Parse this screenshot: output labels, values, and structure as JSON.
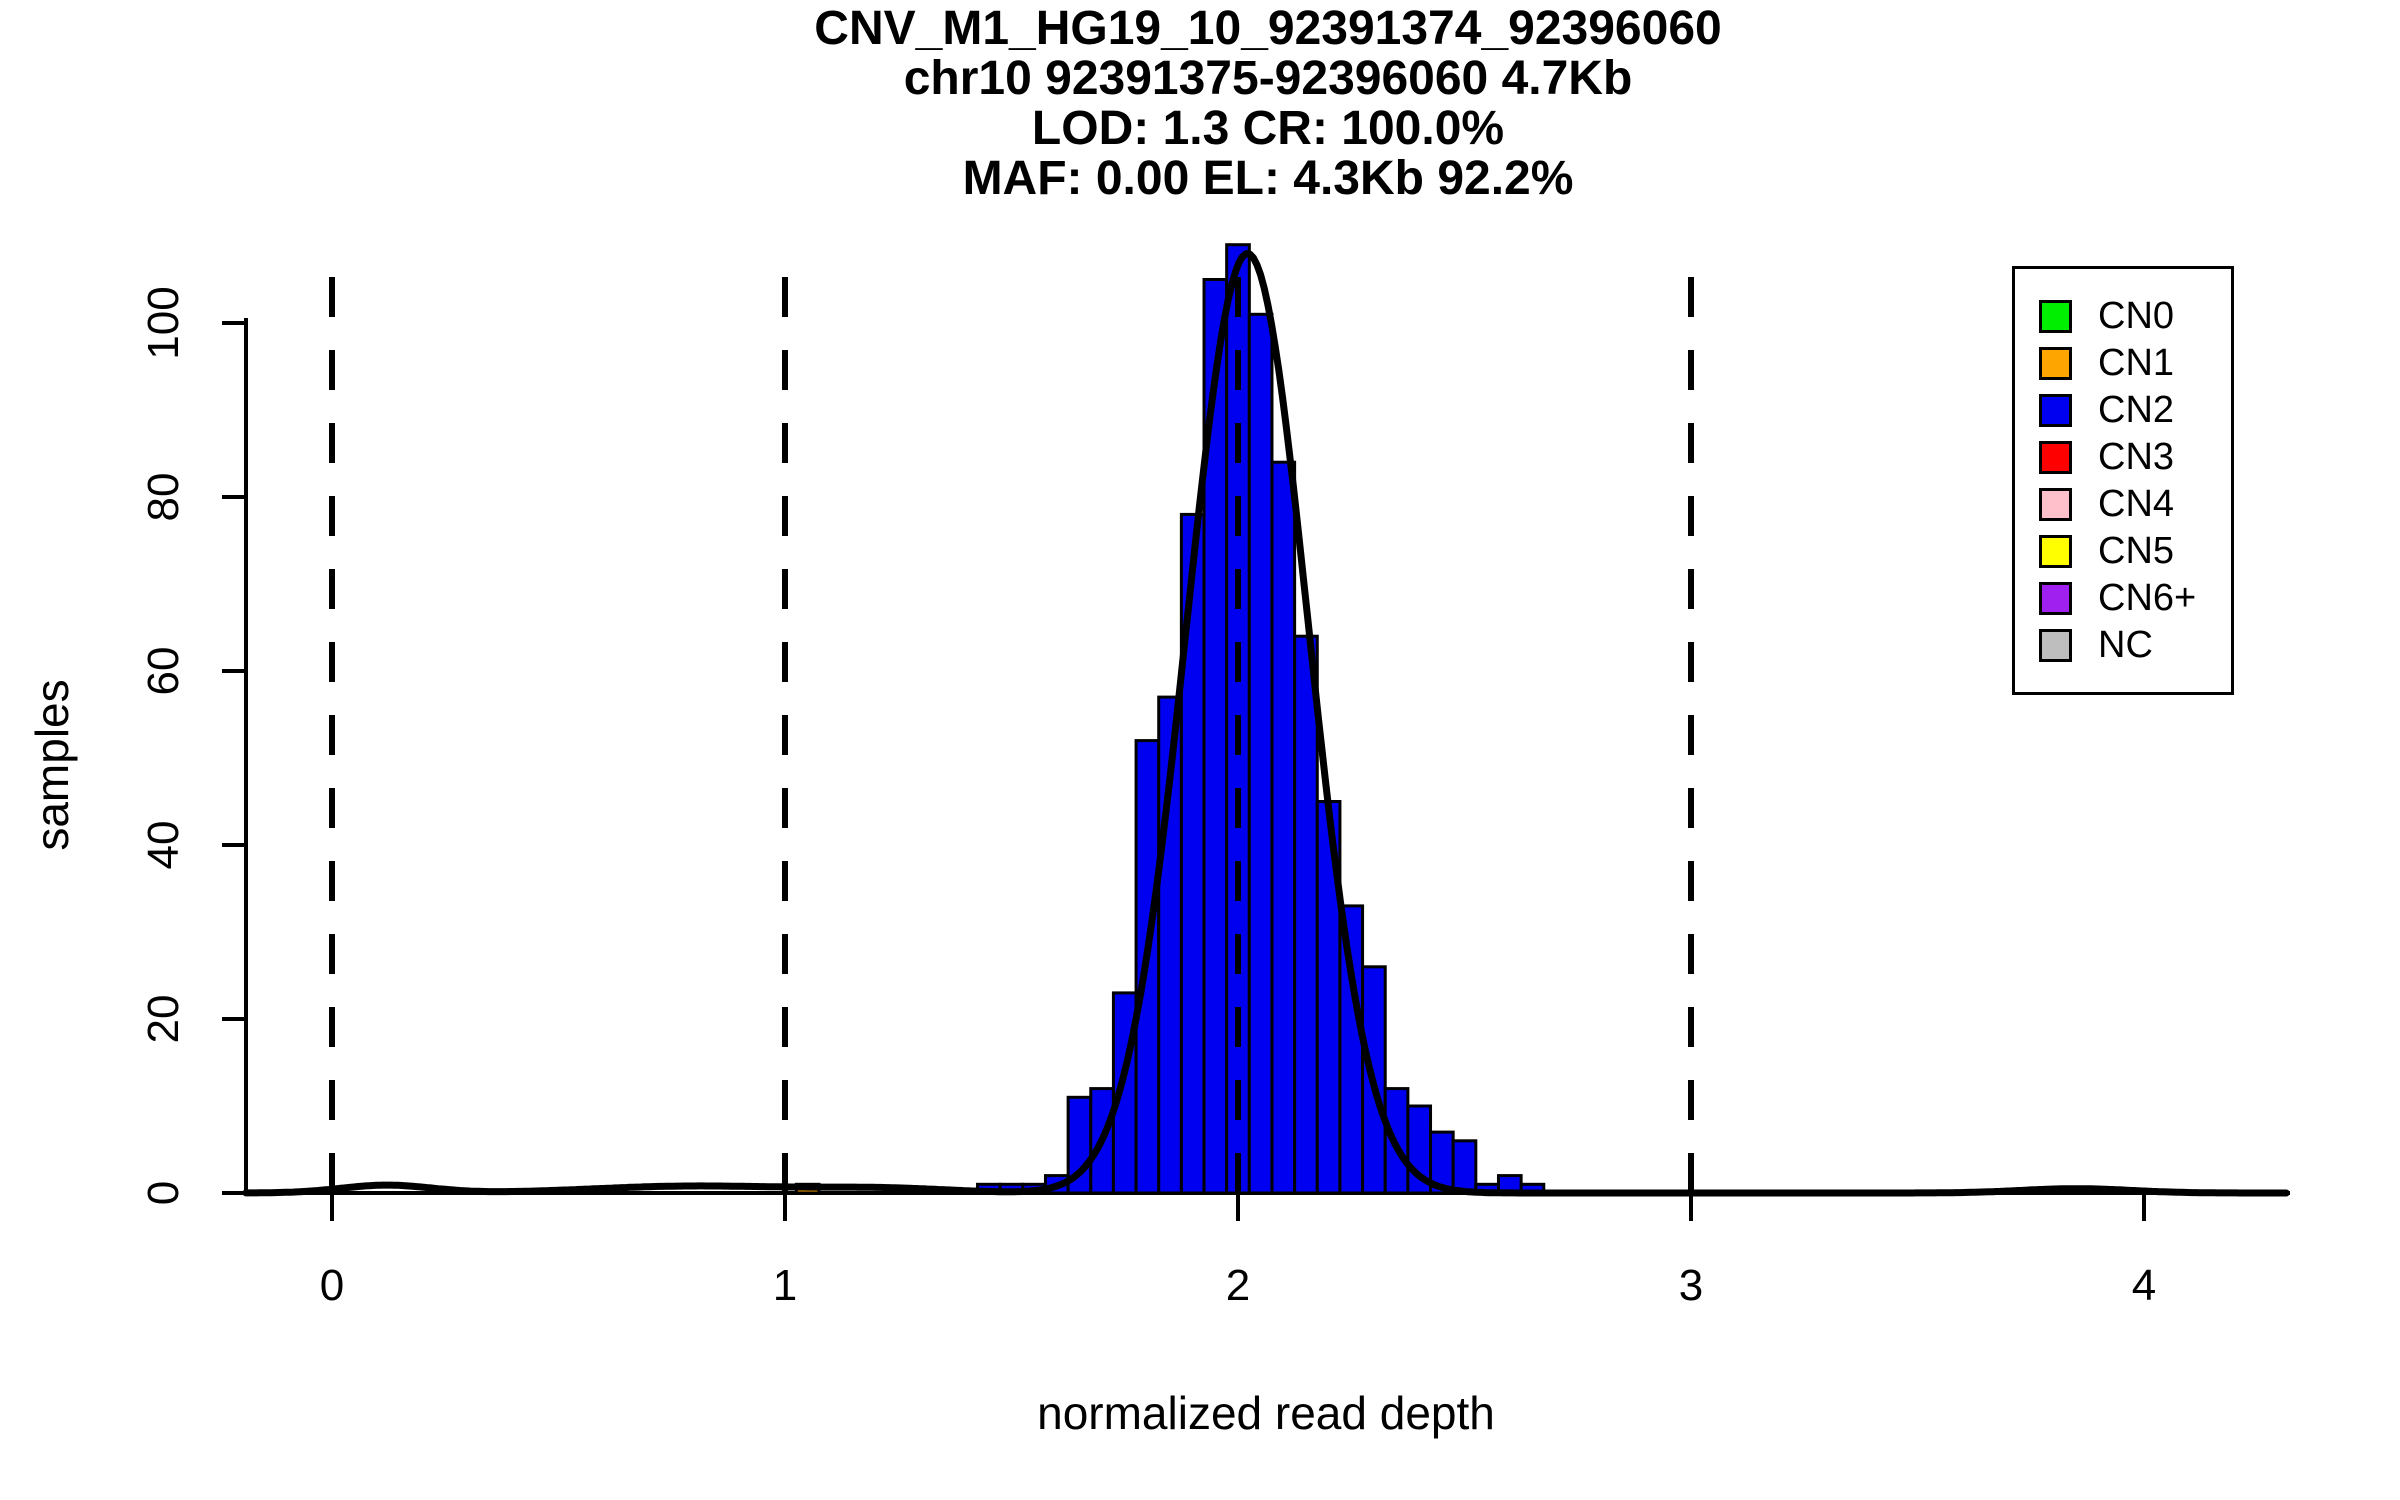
{
  "chart_data": {
    "type": "histogram",
    "title_lines": [
      "CNV_M1_HG19_10_92391374_92396060",
      "chr10 92391375-92396060 4.7Kb",
      "LOD: 1.3 CR: 100.0%",
      "MAF: 0.00 EL: 4.3Kb 92.2%"
    ],
    "xlabel": "normalized read depth",
    "ylabel": "samples",
    "xlim": [
      -0.19,
      4.32
    ],
    "ylim": [
      0,
      109
    ],
    "x_ticks": [
      0,
      1,
      2,
      3,
      4
    ],
    "y_ticks": [
      0,
      20,
      40,
      60,
      80,
      100
    ],
    "dashed_vlines_x": [
      0,
      1,
      2,
      3
    ],
    "grid": false,
    "legend_position": "top-right",
    "histogram": {
      "bin_width": 0.05,
      "series": [
        {
          "name": "CN2",
          "color": "#0000F0",
          "bin_start": 1.425,
          "counts": [
            1,
            1,
            1,
            2,
            11,
            12,
            23,
            52,
            57,
            78,
            105,
            109,
            101,
            84,
            64,
            45,
            33,
            26,
            12,
            10,
            7,
            6,
            1,
            2,
            1
          ]
        },
        {
          "name": "CN1",
          "color": "#FFA500",
          "bins": [
            {
              "start": 1.025,
              "count": 1
            }
          ]
        }
      ]
    },
    "density_curve": {
      "color": "#000000",
      "components": [
        {
          "mu": 2.021,
          "sigma": 0.134,
          "amp": 108
        },
        {
          "mu": 0.12,
          "sigma": 0.1,
          "amp": 0.9
        },
        {
          "mu": 0.8,
          "sigma": 0.22,
          "amp": 0.8
        },
        {
          "mu": 1.22,
          "sigma": 0.15,
          "amp": 0.5
        },
        {
          "mu": 3.85,
          "sigma": 0.12,
          "amp": 0.5
        }
      ]
    },
    "legend": {
      "items": [
        {
          "label": "CN0",
          "color": "#00EE00"
        },
        {
          "label": "CN1",
          "color": "#FFA500"
        },
        {
          "label": "CN2",
          "color": "#0000F0"
        },
        {
          "label": "CN3",
          "color": "#FF0000"
        },
        {
          "label": "CN4",
          "color": "#FFC0CB"
        },
        {
          "label": "CN5",
          "color": "#FFFF00"
        },
        {
          "label": "CN6+",
          "color": "#A020F0"
        },
        {
          "label": "NC",
          "color": "#BEBEBE"
        }
      ]
    },
    "colors": {
      "bar_border": "#000000",
      "axis": "#000000",
      "dashed_line": "#000000",
      "background": "#FFFFFF"
    }
  }
}
